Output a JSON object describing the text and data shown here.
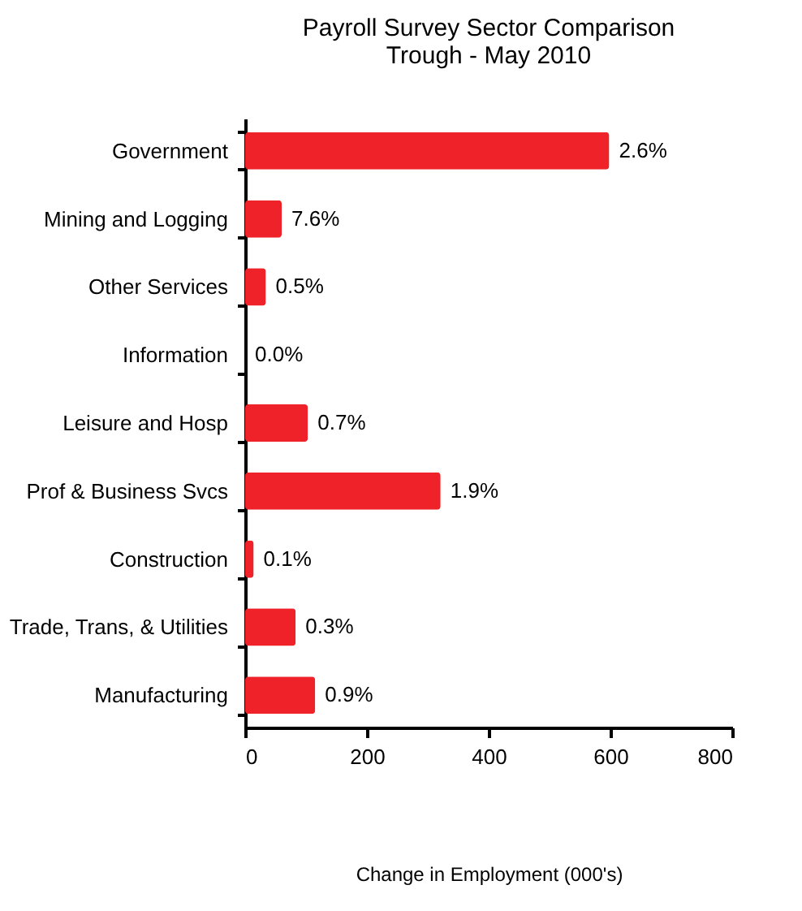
{
  "chart_data": {
    "type": "bar",
    "orientation": "horizontal",
    "title": [
      "Payroll Survey Sector Comparison",
      "Trough - May 2010"
    ],
    "categories": [
      "Government",
      "Mining and Logging",
      "Other Services",
      "Information",
      "Leisure and Hosp",
      "Prof & Business Svcs",
      "Construction",
      "Trade, Trans, & Utilities",
      "Manufacturing"
    ],
    "values": [
      598,
      60,
      34,
      0,
      103,
      321,
      14,
      83,
      115
    ],
    "annotations": [
      {
        "text": "2.6%",
        "x": 598,
        "y": "Government"
      },
      {
        "text": "7.6%",
        "x": 60,
        "y": "Mining and Logging"
      },
      {
        "text": "0.5%",
        "x": 34,
        "y": "Other Services"
      },
      {
        "text": "0.0%",
        "x": 0,
        "y": "Information"
      },
      {
        "text": "0.7%",
        "x": 103,
        "y": "Leisure and Hosp"
      },
      {
        "text": "1.9%",
        "x": 321,
        "y": "Prof & Business Svcs"
      },
      {
        "text": "0.1%",
        "x": 14,
        "y": "Construction"
      },
      {
        "text": "0.3%",
        "x": 83,
        "y": "Trade, Trans, & Utilities"
      },
      {
        "text": "0.9%",
        "x": 115,
        "y": "Manufacturing"
      }
    ],
    "color": "#ee2228",
    "xlim": [
      0,
      800
    ],
    "xticks": [
      0,
      200,
      400,
      600,
      800
    ],
    "xlabel": "Change in Employment (000's)",
    "grid": false
  }
}
